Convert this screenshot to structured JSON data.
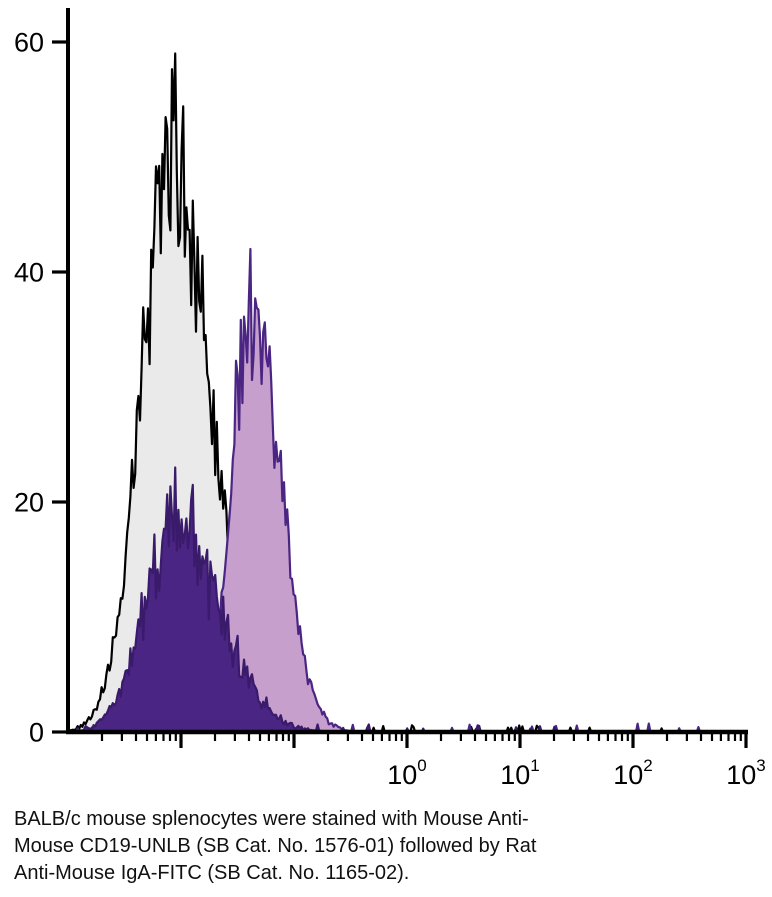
{
  "caption": {
    "lines": [
      "BALB/c mouse splenocytes were stained with Mouse Anti-",
      "Mouse CD19-UNLB (SB Cat. No. 1576-01) followed by Rat",
      "Anti-Mouse IgA-FITC (SB Cat. No. 1165-02)."
    ]
  },
  "chart_data": {
    "type": "area",
    "subtype": "flow-cytometry-overlay-histogram",
    "title": "",
    "xlabel": "",
    "ylabel": "",
    "x_scale": "log10",
    "x_range": [
      0.001,
      1000
    ],
    "y_range": [
      0,
      60
    ],
    "y_ticks": [
      0,
      20,
      40,
      60
    ],
    "x_ticks": [
      {
        "value": 1,
        "base": "10",
        "exponent": "0"
      },
      {
        "value": 10,
        "base": "10",
        "exponent": "1"
      },
      {
        "value": 100,
        "base": "10",
        "exponent": "2"
      },
      {
        "value": 1000,
        "base": "10",
        "exponent": "3"
      }
    ],
    "grid": false,
    "legend": "none",
    "axis_color": "#000000",
    "background_color": "#ffffff",
    "series": [
      {
        "name": "control-open-black",
        "appearance": "open histogram, black outline, light gray fill",
        "peak_x": 0.008,
        "peak_y": 59,
        "sigma_left_log10": 0.26,
        "sigma_right_log10": 0.36,
        "noise": 0.14,
        "tail_end_log10": 2.7,
        "line_color": "#000000",
        "fill_color": "#eaeaea",
        "z": 1,
        "seed": 11
      },
      {
        "name": "stained-light-purple",
        "appearance": "filled light purple histogram with dark purple outline",
        "peak_x": 0.042,
        "peak_y": 42,
        "sigma_left_log10": 0.17,
        "sigma_right_log10": 0.25,
        "noise": 0.12,
        "tail_end_log10": 2.9,
        "line_color": "#4b2583",
        "fill_color": "#c69fcd",
        "z": 2,
        "seed": 22
      },
      {
        "name": "overlap-dark-purple",
        "appearance": "solid dark purple filled histogram overlapping the control",
        "peak_x": 0.0085,
        "peak_y": 23,
        "sigma_left_log10": 0.26,
        "sigma_right_log10": 0.4,
        "noise": 0.2,
        "tail_end_log10": 1.6,
        "line_color": "#3a1b6b",
        "fill_color": "#4b2583",
        "z": 3,
        "seed": 33
      }
    ]
  }
}
